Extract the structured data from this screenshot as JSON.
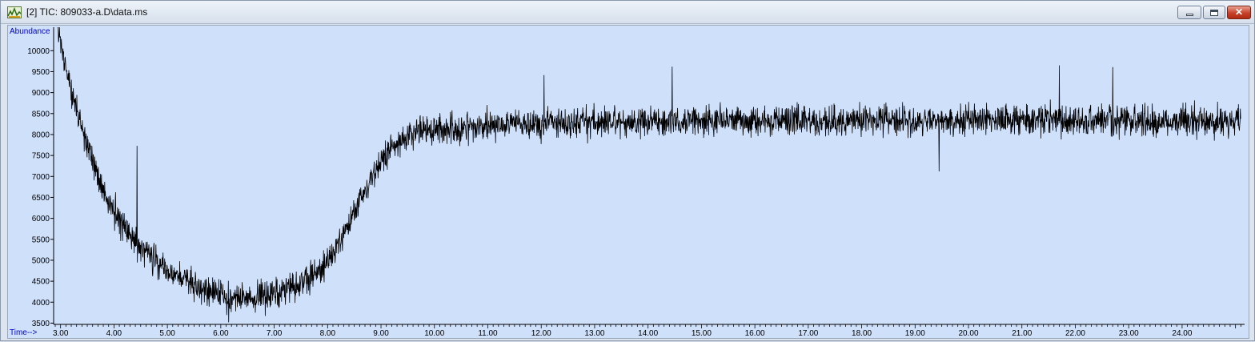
{
  "window": {
    "title": "[2] TIC: 809033-a.D\\data.ms",
    "close_label": "✕"
  },
  "colors": {
    "plot_bg": "#cfe0fb",
    "trace": "#000000",
    "axis_label": "#0000cc"
  },
  "chart_data": {
    "type": "line",
    "ylabel": "Abundance",
    "xlabel": "Time-->",
    "xlim": [
      2.87,
      25.17
    ],
    "ylim": [
      3470,
      10560
    ],
    "y_ticks": [
      3500,
      4000,
      4500,
      5000,
      5500,
      6000,
      6500,
      7000,
      7500,
      8000,
      8500,
      9000,
      9500,
      10000
    ],
    "x_ticks": [
      "3.00",
      "4.00",
      "5.00",
      "6.00",
      "7.00",
      "8.00",
      "9.00",
      "10.00",
      "11.00",
      "12.00",
      "13.00",
      "14.00",
      "15.00",
      "16.00",
      "17.00",
      "18.00",
      "19.00",
      "20.00",
      "21.00",
      "22.00",
      "23.00",
      "24.00"
    ],
    "series": [
      {
        "x": [
          2.95,
          3.0,
          3.1,
          3.2,
          3.3,
          3.4,
          3.5,
          3.6,
          3.7,
          3.8,
          3.9,
          4.0,
          4.1,
          4.2,
          4.3,
          4.4,
          4.5,
          4.6,
          4.7,
          4.8,
          4.9,
          5.0,
          5.2,
          5.4,
          5.6,
          5.8,
          6.0,
          6.2,
          6.4,
          6.6,
          6.8,
          7.0,
          7.2,
          7.4,
          7.6,
          7.8,
          8.0,
          8.2,
          8.4,
          8.6,
          8.8,
          9.0,
          9.2,
          9.4,
          9.6,
          9.8,
          10.0,
          10.5,
          11.0,
          11.5,
          12.0,
          13.0,
          14.0,
          15.0,
          16.0,
          17.0,
          18.0,
          19.0,
          20.0,
          21.0,
          22.0,
          23.0,
          24.0,
          25.1
        ],
        "y": [
          10500,
          10100,
          9600,
          9050,
          8550,
          8100,
          7700,
          7350,
          7000,
          6700,
          6450,
          6200,
          5980,
          5780,
          5600,
          5450,
          5300,
          5170,
          5050,
          4950,
          4850,
          4760,
          4600,
          4450,
          4320,
          4230,
          4150,
          4110,
          4090,
          4080,
          4110,
          4150,
          4250,
          4380,
          4520,
          4700,
          4950,
          5350,
          5850,
          6400,
          6900,
          7400,
          7700,
          7900,
          8020,
          8080,
          8120,
          8160,
          8200,
          8240,
          8270,
          8300,
          8310,
          8320,
          8330,
          8330,
          8340,
          8340,
          8350,
          8350,
          8350,
          8350,
          8350,
          8350
        ],
        "noise_amplitude": 380,
        "spikes": [
          {
            "x": 4.43,
            "y": 7730
          },
          {
            "x": 12.05,
            "y": 9420
          },
          {
            "x": 14.45,
            "y": 9620
          },
          {
            "x": 21.7,
            "y": 9650
          },
          {
            "x": 22.7,
            "y": 9610
          },
          {
            "x": 19.45,
            "y": 7120
          },
          {
            "x": 6.15,
            "y": 3520
          }
        ]
      }
    ]
  }
}
